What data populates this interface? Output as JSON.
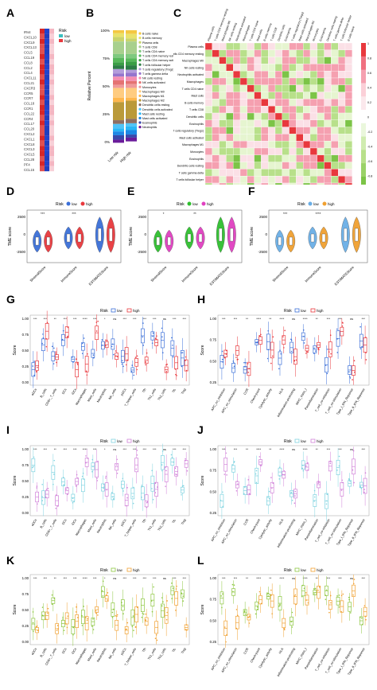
{
  "panels": {
    "A": "A",
    "B": "B",
    "C": "C",
    "D": "D",
    "E": "E",
    "F": "F",
    "G": "G",
    "H": "H",
    "I": "I",
    "J": "J",
    "K": "K",
    "L": "L"
  },
  "panel_a": {
    "legend_title": "Risk",
    "legend_low": "low",
    "legend_high": "high",
    "genes": [
      "IRs4",
      "CXCL10",
      "CXCL9",
      "CXCL13",
      "CCL5",
      "CCL19",
      "CCL8",
      "CCL2",
      "CCL4",
      "CXCL11",
      "CCL21",
      "CXCR3",
      "CCR5",
      "CCR7",
      "CCL18",
      "CCR1",
      "CCL22",
      "CCR4",
      "CCL17",
      "CCL20",
      "CXCL2",
      "CXCL1",
      "CXCL8",
      "CXCL3",
      "CXCL5",
      "CCL28",
      "PF4",
      "CCL15"
    ]
  },
  "panel_b": {
    "ylabel": "Relative Percent",
    "yticks": [
      "100%",
      "75%",
      "50%",
      "25%",
      "0%"
    ],
    "xticks": [
      "Low risk",
      "High risk"
    ],
    "legend": [
      "B cells naive",
      "B cells memory",
      "Plasma cells",
      "T cells CD8",
      "T cells CD4 naive",
      "T cells CD4 memory resting",
      "T cells CD4 memory activated",
      "T cells follicular helper",
      "T cells regulatory (Tregs)",
      "T cells gamma delta",
      "NK cells resting",
      "NK cells activated",
      "Monocytes",
      "Macrophages M0",
      "Macrophages M1",
      "Macrophages M2",
      "Dendritic cells resting",
      "Dendritic cells activated",
      "Mast cells resting",
      "Mast cells activated",
      "Eosinophils",
      "Neutrophils"
    ],
    "colors": [
      "#f4c842",
      "#e8e26a",
      "#c9d46b",
      "#a8d08d",
      "#7fc97f",
      "#57b85a",
      "#3a9e45",
      "#2d7d46",
      "#b39ddb",
      "#9575cd",
      "#f48fb1",
      "#e57373",
      "#ef9a9a",
      "#ffcc80",
      "#ffb74d",
      "#ba9a3a",
      "#8d6e63",
      "#4fc3f7",
      "#29b6f6",
      "#1e88e5",
      "#3949ab",
      "#6a1b9a"
    ]
  },
  "panel_c": {
    "labels": [
      "Plasma cells",
      "T cells CD4 memory resting",
      "Macrophages M0",
      "NK cells resting",
      "Neutrophils activated",
      "Macrophages",
      "T cells CD4 naive",
      "Mast cells",
      "B cells memory",
      "T cells CD8",
      "Dendritic cells",
      "Eosinophils",
      "T cells regulatory (Tregs)",
      "Mast cells activated",
      "Macrophages M1",
      "Monocytes",
      "Eosinophils",
      "Dendritic cells resting",
      "T cells gamma delta",
      "T cells follicular helper",
      "B cells naive"
    ],
    "scale": [
      "1",
      "0.8",
      "0.6",
      "0.4",
      "0.2",
      "0",
      "-0.2",
      "-0.4",
      "-0.6",
      "-0.8",
      "-1"
    ]
  },
  "violin": {
    "legend_title": "Risk",
    "low": "low",
    "high": "high",
    "ylabel": "TME score",
    "xticks": [
      "StromalScore",
      "ImmuneScore",
      "ESTIMATEScore"
    ],
    "yticks": [
      "2500",
      "0",
      "-2500"
    ],
    "sig_d": [
      "***",
      "***",
      ""
    ],
    "sig_e": [
      "*",
      "**",
      ""
    ],
    "sig_f": [
      "***",
      "****",
      ""
    ]
  },
  "boxplots": {
    "legend_title": "Risk",
    "low": "low",
    "high": "high",
    "ylabel_cells": "Score",
    "ylabel_func": "Score",
    "yticks_cells": [
      "1.00",
      "0.75",
      "0.50",
      "0.25",
      "0.00"
    ],
    "yticks_func": [
      "1.00",
      "0.75",
      "0.50",
      "0.25"
    ],
    "cell_types": [
      "aDCs",
      "B_cells",
      "CD8+_T_cells",
      "DCs",
      "iDCs",
      "Macrophages",
      "Mast_cells",
      "Neutrophils",
      "NK_cells",
      "pDCs",
      "T_helper_cells",
      "Tfh",
      "Th1_cells",
      "Th2_cells",
      "TIL",
      "Treg"
    ],
    "functions": [
      "APC_co_inhibition",
      "APC_co_stimulation",
      "CCR",
      "Check-point",
      "Cytolytic_activity",
      "HLA",
      "Inflammation-promoting",
      "MHC_class_I",
      "Parainflammation",
      "T_cell_co-inhibition",
      "T_cell_co-stimulation",
      "Type_I_IFN_Reponse",
      "Type_II_IFN_Reponse"
    ],
    "sig_cells": [
      "***",
      "***",
      "**",
      "***",
      "***",
      "****",
      "***",
      "*",
      "ns",
      "***",
      "***",
      "***",
      "***",
      "ns",
      "***",
      "***"
    ],
    "sig_func": [
      "***",
      "***",
      "**",
      "****",
      "**",
      "****",
      "ns",
      "****",
      "**",
      "***",
      "***",
      "ns",
      "***"
    ]
  },
  "colors": {
    "d_low": "#3b6fd8",
    "d_high": "#e8383d",
    "e_low": "#2fbf2f",
    "e_high": "#e040c0",
    "f_low": "#6aaee6",
    "f_high": "#f0a030",
    "g_low": "#3b6fd8",
    "g_high": "#e8383d",
    "i_low": "#7fd3e0",
    "i_high": "#d080d8",
    "k_low": "#8cc63f",
    "k_high": "#f0a030"
  }
}
